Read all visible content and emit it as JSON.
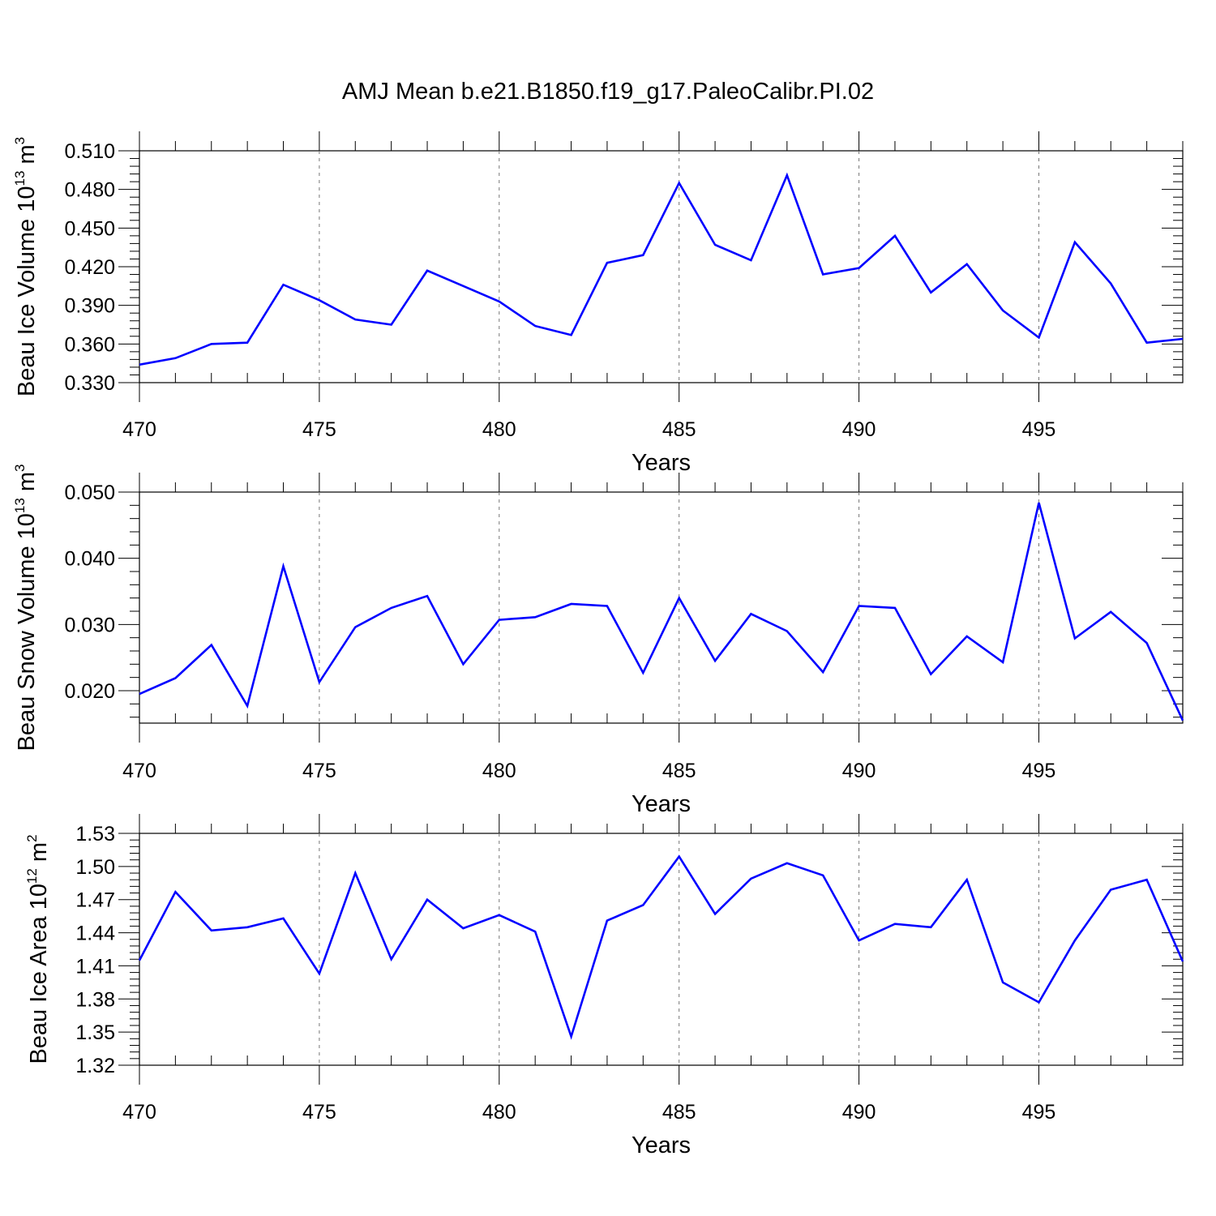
{
  "title": "AMJ Mean b.e21.B1850.f19_g17.PaleoCalibr.PI.02",
  "series_color": "#0000ff",
  "chart_data": [
    {
      "type": "line",
      "ylabel": "Beau Ice Volume 10",
      "ylabel_exp": "13",
      "ylabel_unit": " m",
      "ylabel_unit_exp": "3",
      "xlabel": "Years",
      "xlim": [
        470,
        499
      ],
      "ylim": [
        0.33,
        0.51
      ],
      "x_ticks": [
        "470",
        "475",
        "480",
        "485",
        "490",
        "495"
      ],
      "y_ticks": [
        "0.330",
        "0.360",
        "0.390",
        "0.420",
        "0.450",
        "0.480",
        "0.510"
      ],
      "x": [
        470,
        471,
        472,
        473,
        474,
        475,
        476,
        477,
        478,
        479,
        480,
        481,
        482,
        483,
        484,
        485,
        486,
        487,
        488,
        489,
        490,
        491,
        492,
        493,
        494,
        495,
        496,
        497,
        498,
        499
      ],
      "y": [
        0.344,
        0.349,
        0.36,
        0.361,
        0.406,
        0.394,
        0.379,
        0.375,
        0.417,
        0.405,
        0.393,
        0.374,
        0.367,
        0.423,
        0.429,
        0.485,
        0.437,
        0.425,
        0.491,
        0.414,
        0.419,
        0.444,
        0.4,
        0.422,
        0.386,
        0.365,
        0.439,
        0.407,
        0.361,
        0.364
      ]
    },
    {
      "type": "line",
      "ylabel": "Beau Snow Volume 10",
      "ylabel_exp": "13",
      "ylabel_unit": " m",
      "ylabel_unit_exp": "3",
      "xlabel": "Years",
      "xlim": [
        470,
        499
      ],
      "ylim": [
        0.0151,
        0.05
      ],
      "x_ticks": [
        "470",
        "475",
        "480",
        "485",
        "490",
        "495"
      ],
      "y_ticks": [
        "0.020",
        "0.030",
        "0.040",
        "0.050"
      ],
      "x": [
        470,
        471,
        472,
        473,
        474,
        475,
        476,
        477,
        478,
        479,
        480,
        481,
        482,
        483,
        484,
        485,
        486,
        487,
        488,
        489,
        490,
        491,
        492,
        493,
        494,
        495,
        496,
        497,
        498,
        499
      ],
      "y": [
        0.0195,
        0.0219,
        0.0269,
        0.0177,
        0.0388,
        0.0213,
        0.0296,
        0.0325,
        0.0343,
        0.024,
        0.0307,
        0.0311,
        0.0331,
        0.0328,
        0.0227,
        0.034,
        0.0245,
        0.0316,
        0.029,
        0.0228,
        0.0328,
        0.0325,
        0.0225,
        0.0282,
        0.0243,
        0.0484,
        0.0279,
        0.0319,
        0.0272,
        0.0155
      ]
    },
    {
      "type": "line",
      "ylabel": "Beau Ice Area 10",
      "ylabel_exp": "12",
      "ylabel_unit": " m",
      "ylabel_unit_exp": "2",
      "xlabel": "Years",
      "xlim": [
        470,
        499
      ],
      "ylim": [
        1.32,
        1.53
      ],
      "x_ticks": [
        "470",
        "475",
        "480",
        "485",
        "490",
        "495"
      ],
      "y_ticks": [
        "1.32",
        "1.35",
        "1.38",
        "1.41",
        "1.44",
        "1.47",
        "1.50",
        "1.53"
      ],
      "x": [
        470,
        471,
        472,
        473,
        474,
        475,
        476,
        477,
        478,
        479,
        480,
        481,
        482,
        483,
        484,
        485,
        486,
        487,
        488,
        489,
        490,
        491,
        492,
        493,
        494,
        495,
        496,
        497,
        498,
        499
      ],
      "y": [
        1.415,
        1.477,
        1.442,
        1.445,
        1.453,
        1.403,
        1.494,
        1.416,
        1.47,
        1.444,
        1.456,
        1.441,
        1.346,
        1.451,
        1.465,
        1.509,
        1.457,
        1.489,
        1.503,
        1.492,
        1.433,
        1.448,
        1.445,
        1.488,
        1.395,
        1.377,
        1.433,
        1.479,
        1.488,
        1.414
      ]
    }
  ]
}
